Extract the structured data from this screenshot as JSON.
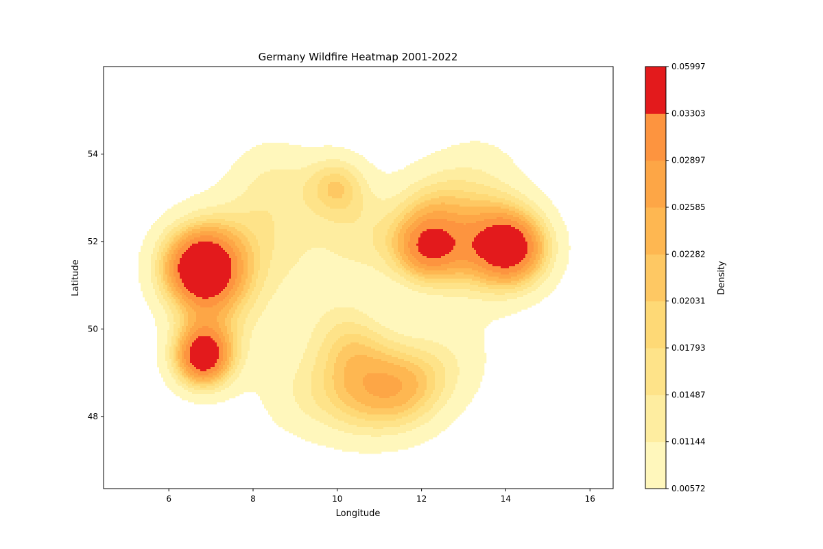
{
  "chart_data": {
    "type": "heatmap",
    "subtype": "filled-contour kernel density",
    "title": "Germany Wildfire Heatmap 2001-2022",
    "xlabel": "Longitude",
    "ylabel": "Latitude",
    "xlim": [
      4.45,
      16.55
    ],
    "ylim": [
      46.35,
      56.0
    ],
    "x_ticks": [
      "6",
      "8",
      "10",
      "12",
      "14",
      "16"
    ],
    "y_ticks": [
      "48",
      "50",
      "52",
      "54"
    ],
    "x_tick_values": [
      6,
      8,
      10,
      12,
      14,
      16
    ],
    "y_tick_values": [
      48,
      50,
      52,
      54
    ],
    "grid": false,
    "colormap": "YlOrRd",
    "colorbar": {
      "label": "Density",
      "levels": [
        "0.00572",
        "0.01144",
        "0.01487",
        "0.01793",
        "0.02031",
        "0.02282",
        "0.02585",
        "0.02897",
        "0.03303",
        "0.05997"
      ],
      "colors": [
        "#fff7bc",
        "#feeda0",
        "#fee389",
        "#fed976",
        "#fec863",
        "#feb751",
        "#fda646",
        "#fd943f",
        "#e31a1c"
      ]
    },
    "hotspots": [
      {
        "lon": 6.8,
        "lat": 51.4,
        "level": "0.03303"
      },
      {
        "lon": 6.85,
        "lat": 49.35,
        "level": "0.03303"
      },
      {
        "lon": 12.15,
        "lat": 51.8,
        "level": "0.03303"
      },
      {
        "lon": 14.2,
        "lat": 51.85,
        "level": "0.03303"
      },
      {
        "lon": 10.0,
        "lat": 53.3,
        "level": "0.02897"
      },
      {
        "lon": 11.6,
        "lat": 48.65,
        "level": "0.02897"
      }
    ]
  }
}
